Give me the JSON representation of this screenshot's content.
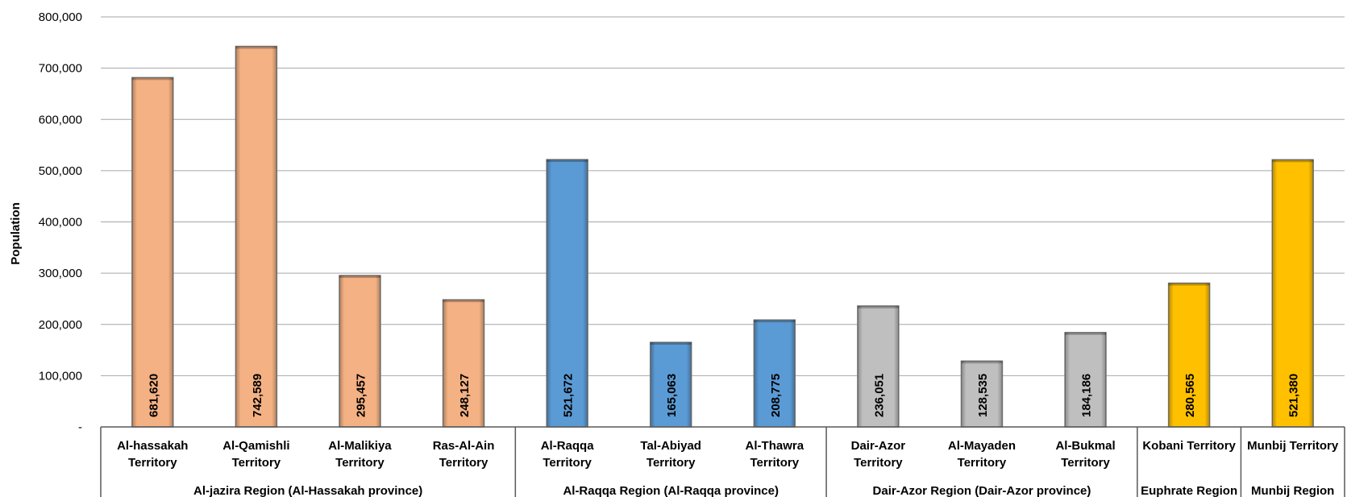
{
  "chart_data": {
    "type": "bar",
    "ylabel": "Population",
    "ylim": [
      0,
      800000
    ],
    "yticks": [
      0,
      100000,
      200000,
      300000,
      400000,
      500000,
      600000,
      700000,
      800000
    ],
    "ytick_labels": [
      "-",
      "100,000",
      "200,000",
      "300,000",
      "400,000",
      "500,000",
      "600,000",
      "700,000",
      "800,000"
    ],
    "grid": true,
    "categories": [
      {
        "line1": "Al-hassakah",
        "line2": "Territory",
        "value": 681620,
        "label": "681,620",
        "color": "#F4B183"
      },
      {
        "line1": "Al-Qamishli",
        "line2": "Territory",
        "value": 742589,
        "label": "742,589",
        "color": "#F4B183"
      },
      {
        "line1": "Al-Malikiya",
        "line2": "Territory",
        "value": 295457,
        "label": "295,457",
        "color": "#F4B183"
      },
      {
        "line1": "Ras-Al-Ain",
        "line2": "Territory",
        "value": 248127,
        "label": "248,127",
        "color": "#F4B183"
      },
      {
        "line1": "Al-Raqqa",
        "line2": "Territory",
        "value": 521672,
        "label": "521,672",
        "color": "#5B9BD5"
      },
      {
        "line1": "Tal-Abiyad",
        "line2": "Territory",
        "value": 165063,
        "label": "165,063",
        "color": "#5B9BD5"
      },
      {
        "line1": "Al-Thawra",
        "line2": "Territory",
        "value": 208775,
        "label": "208,775",
        "color": "#5B9BD5"
      },
      {
        "line1": "Dair-Azor",
        "line2": "Territory",
        "value": 236051,
        "label": "236,051",
        "color": "#BFBFBF"
      },
      {
        "line1": "Al-Mayaden",
        "line2": "Territory",
        "value": 128535,
        "label": "128,535",
        "color": "#BFBFBF"
      },
      {
        "line1": "Al-Bukmal",
        "line2": "Territory",
        "value": 184186,
        "label": "184,186",
        "color": "#BFBFBF"
      },
      {
        "line1": "Kobani Territory",
        "line2": "",
        "value": 280565,
        "label": "280,565",
        "color": "#FFC000"
      },
      {
        "line1": "Munbij Territory",
        "line2": "",
        "value": 521380,
        "label": "521,380",
        "color": "#FFC000"
      }
    ],
    "groups": [
      {
        "name": "Al-jazira Region (Al-Hassakah province)",
        "start": 0,
        "end": 3
      },
      {
        "name": "Al-Raqqa Region (Al-Raqqa province)",
        "start": 4,
        "end": 6
      },
      {
        "name": "Dair-Azor Region (Dair-Azor province)",
        "start": 7,
        "end": 9
      },
      {
        "name": "Euphrate Region",
        "start": 10,
        "end": 10
      },
      {
        "name": "Munbij Region",
        "start": 11,
        "end": 11
      }
    ]
  }
}
